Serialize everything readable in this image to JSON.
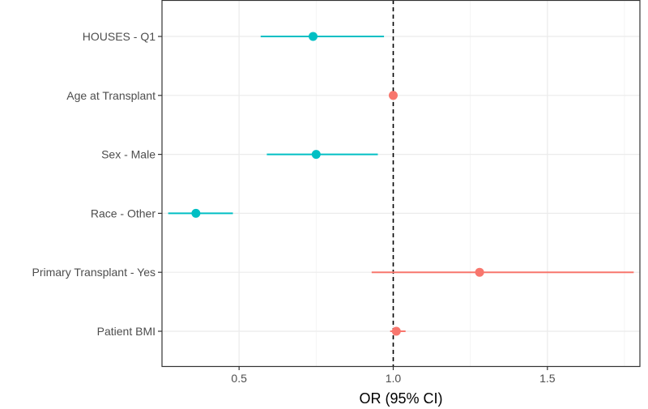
{
  "chart_data": {
    "type": "forest",
    "title": "",
    "xlabel": "OR (95% CI)",
    "ylabel": "",
    "xlim": [
      0.25,
      1.8
    ],
    "x_ticks": [
      0.5,
      1.0,
      1.5
    ],
    "x_tick_labels": [
      "0.5",
      "1.0",
      "1.5"
    ],
    "reference_line": {
      "x": 1.0,
      "style": "dashed"
    },
    "grid": true,
    "legend": "none",
    "colors": {
      "below_one": "#00BFC4",
      "above_one": "#F8766D"
    },
    "rows": [
      {
        "label": "HOUSES - Q1",
        "or": 0.74,
        "lower": 0.57,
        "upper": 0.97
      },
      {
        "label": "Age at Transplant",
        "or": 1.0,
        "lower": 0.995,
        "upper": 1.005
      },
      {
        "label": "Sex - Male",
        "or": 0.75,
        "lower": 0.59,
        "upper": 0.95
      },
      {
        "label": "Race - Other",
        "or": 0.36,
        "lower": 0.27,
        "upper": 0.48
      },
      {
        "label": "Primary Transplant - Yes",
        "or": 1.28,
        "lower": 0.93,
        "upper": 1.78
      },
      {
        "label": "Patient BMI",
        "or": 1.01,
        "lower": 0.99,
        "upper": 1.04
      }
    ]
  }
}
